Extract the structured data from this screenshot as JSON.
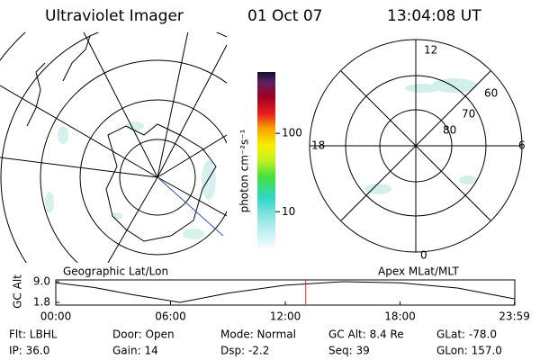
{
  "header": {
    "instrument": "Ultraviolet Imager",
    "date": "01 Oct 07",
    "time": "13:04:08 UT"
  },
  "left_panel": {
    "label": "Geographic Lat/Lon"
  },
  "right_panel": {
    "label": "Apex MLat/MLT",
    "mlt_labels": [
      "12",
      "18",
      "6",
      "0"
    ],
    "lat_labels": [
      "60",
      "70",
      "80"
    ]
  },
  "colorbar": {
    "label": "photon cm⁻²s⁻¹",
    "lim": [
      3.5,
      605
    ],
    "log": true,
    "ticks": [
      10,
      100
    ]
  },
  "altitude_plot": {
    "ylabel": "GC Alt",
    "xlim": [
      0,
      24
    ],
    "ylim": [
      1.8,
      9.0
    ],
    "yticks": [
      {
        "value": 9.0,
        "label": "9.0"
      },
      1.8
    ],
    "xticks": [
      {
        "value": 0,
        "label": "00:00"
      },
      {
        "value": 6,
        "label": "06:00"
      },
      {
        "value": 12,
        "label": "12:00"
      },
      {
        "value": 18,
        "label": "18:00"
      },
      {
        "value": 23.98,
        "label": "23:59"
      }
    ],
    "x": [
      0,
      2,
      4,
      6.5,
      9,
      12,
      15,
      18,
      21,
      24
    ],
    "values": [
      8.6,
      7.0,
      4.5,
      1.8,
      5.0,
      7.8,
      9.0,
      8.6,
      6.8,
      3.0
    ],
    "marker": 13.07,
    "marker_color": "#e0282d"
  },
  "status": {
    "rows": [
      [
        "Flt: LBHL",
        "Door: Open",
        "Mode: Normal",
        "GC Alt: 8.4 Re",
        "GLat: -78.0"
      ],
      [
        "IP: 36.0",
        "Gain: 14",
        "Dsp:  -2.2",
        "Seq: 39",
        "GLon: 157.0"
      ]
    ]
  }
}
